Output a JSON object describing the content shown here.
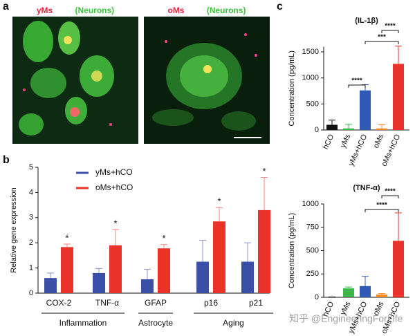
{
  "panel_labels": [
    "a",
    "b",
    "c"
  ],
  "images": [
    {
      "title_parts": [
        {
          "text": "yMs",
          "color": "#e8253a"
        },
        {
          "text": "+hCO",
          "color": "#ffffff"
        },
        {
          "text": "(Neurons)",
          "color": "#3cc43c"
        }
      ]
    },
    {
      "title_parts": [
        {
          "text": "oMs",
          "color": "#e8253a"
        },
        {
          "text": "+hCO",
          "color": "#ffffff"
        },
        {
          "text": "(Neurons)",
          "color": "#3cc43c"
        }
      ]
    }
  ],
  "watermark": "知乎 @EngineeringForLife",
  "chart_data": [
    {
      "type": "grouped-bar",
      "ylabel": "Relative gene expression",
      "categories": [
        "COX-2",
        "TNF-α",
        "GFAP",
        "p16",
        "p21"
      ],
      "groups": [
        "Inflammation",
        "Astrocyte",
        "Aging"
      ],
      "series": [
        {
          "name": "yMs+hCO",
          "color": "#3a4fa8",
          "values": [
            0.6,
            0.8,
            0.55,
            1.25,
            1.25
          ],
          "errors": [
            0.2,
            0.18,
            0.4,
            0.85,
            0.75
          ]
        },
        {
          "name": "oMs+hCO",
          "color": "#e8322a",
          "values": [
            1.83,
            1.9,
            1.78,
            2.85,
            3.3
          ],
          "errors": [
            0.12,
            0.63,
            0.15,
            0.55,
            1.3
          ],
          "significance": [
            "*",
            "*",
            "*",
            "*",
            "*"
          ]
        }
      ],
      "ylim": [
        0,
        5
      ],
      "yticks": [
        0,
        1,
        2,
        3,
        4,
        5
      ]
    },
    {
      "type": "bar",
      "title": "(IL-1β)",
      "ylabel": "Concentration (pg/mL)",
      "categories": [
        "hCO",
        "yMs",
        "yMs+hCO",
        "oMs",
        "oMs+hCO"
      ],
      "colors": [
        "#111111",
        "#3cb44a",
        "#2f5bb7",
        "#f08a24",
        "#e8322a"
      ],
      "values": [
        100,
        30,
        760,
        30,
        1270
      ],
      "errors": [
        90,
        80,
        110,
        70,
        340
      ],
      "brackets": [
        "****",
        "***",
        "****"
      ],
      "ylim": [
        0,
        1600
      ],
      "yticks": [
        0,
        500,
        1000,
        1500
      ]
    },
    {
      "type": "bar",
      "title": "(TNF-α)",
      "ylabel": "Concentration (pg/mL)",
      "categories": [
        "hCO",
        "yMs",
        "yMs+hCO",
        "oMs",
        "oMs+hCO"
      ],
      "colors": [
        "#111111",
        "#3cb44a",
        "#2f5bb7",
        "#f08a24",
        "#e8322a"
      ],
      "values": [
        2,
        95,
        120,
        30,
        605
      ],
      "errors": [
        2,
        15,
        105,
        10,
        300
      ],
      "brackets": [
        "****",
        "****"
      ],
      "ylim": [
        0,
        1000
      ],
      "yticks": [
        0,
        250,
        500,
        750,
        1000
      ]
    }
  ]
}
